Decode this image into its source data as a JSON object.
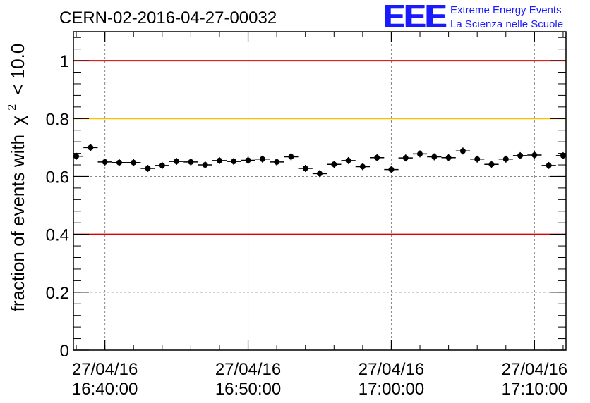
{
  "title": "CERN-02-2016-04-27-00032",
  "logo": {
    "mark": "EEE",
    "line1": "Extreme Energy Events",
    "line2": "La Scienza nelle Scuole"
  },
  "chart_data": {
    "type": "scatter",
    "ylabel": "fraction of events with",
    "ylabel_symbol": "χ",
    "ylabel_sup": "2",
    "ylabel_suffix": "< 10.0",
    "ylim": [
      0,
      1.1
    ],
    "y_ticks": [
      {
        "value": 0,
        "label": "0"
      },
      {
        "value": 0.2,
        "label": "0.2"
      },
      {
        "value": 0.4,
        "label": "0.4"
      },
      {
        "value": 0.6,
        "label": "0.6"
      },
      {
        "value": 0.8,
        "label": "0.8"
      },
      {
        "value": 1,
        "label": "1"
      }
    ],
    "x_unit": "minutes after 27/04/16 16:40:00",
    "xlim": [
      -2.2,
      32.2
    ],
    "x_ticks": [
      {
        "value": 0,
        "date": "27/04/16",
        "time": "16:40:00"
      },
      {
        "value": 10,
        "date": "27/04/16",
        "time": "16:50:00"
      },
      {
        "value": 20,
        "date": "27/04/16",
        "time": "17:00:00"
      },
      {
        "value": 30,
        "date": "27/04/16",
        "time": "17:10:00"
      }
    ],
    "reference_lines": [
      {
        "y": 1.0,
        "color": "#dd0000"
      },
      {
        "y": 0.8,
        "color": "#ffbb00"
      },
      {
        "y": 0.4,
        "color": "#dd0000"
      }
    ],
    "grid": true,
    "bin_width": 1,
    "x": [
      -2,
      -1,
      0,
      1,
      2,
      3,
      4,
      5,
      6,
      7,
      8,
      9,
      10,
      11,
      12,
      13,
      14,
      15,
      16,
      17,
      18,
      19,
      20,
      21,
      22,
      23,
      24,
      25,
      26,
      27,
      28,
      29,
      30,
      31,
      32
    ],
    "values": [
      0.67,
      0.7,
      0.65,
      0.648,
      0.648,
      0.628,
      0.638,
      0.652,
      0.65,
      0.64,
      0.655,
      0.652,
      0.656,
      0.66,
      0.65,
      0.668,
      0.628,
      0.61,
      0.642,
      0.655,
      0.634,
      0.665,
      0.624,
      0.664,
      0.678,
      0.668,
      0.665,
      0.688,
      0.66,
      0.642,
      0.66,
      0.672,
      0.674,
      0.638,
      0.672
    ],
    "errors": [
      0.012,
      0.012,
      0.012,
      0.012,
      0.012,
      0.012,
      0.012,
      0.012,
      0.012,
      0.012,
      0.012,
      0.012,
      0.012,
      0.012,
      0.012,
      0.012,
      0.012,
      0.012,
      0.012,
      0.012,
      0.012,
      0.012,
      0.012,
      0.012,
      0.012,
      0.012,
      0.012,
      0.012,
      0.012,
      0.012,
      0.012,
      0.012,
      0.012,
      0.012,
      0.012
    ]
  }
}
